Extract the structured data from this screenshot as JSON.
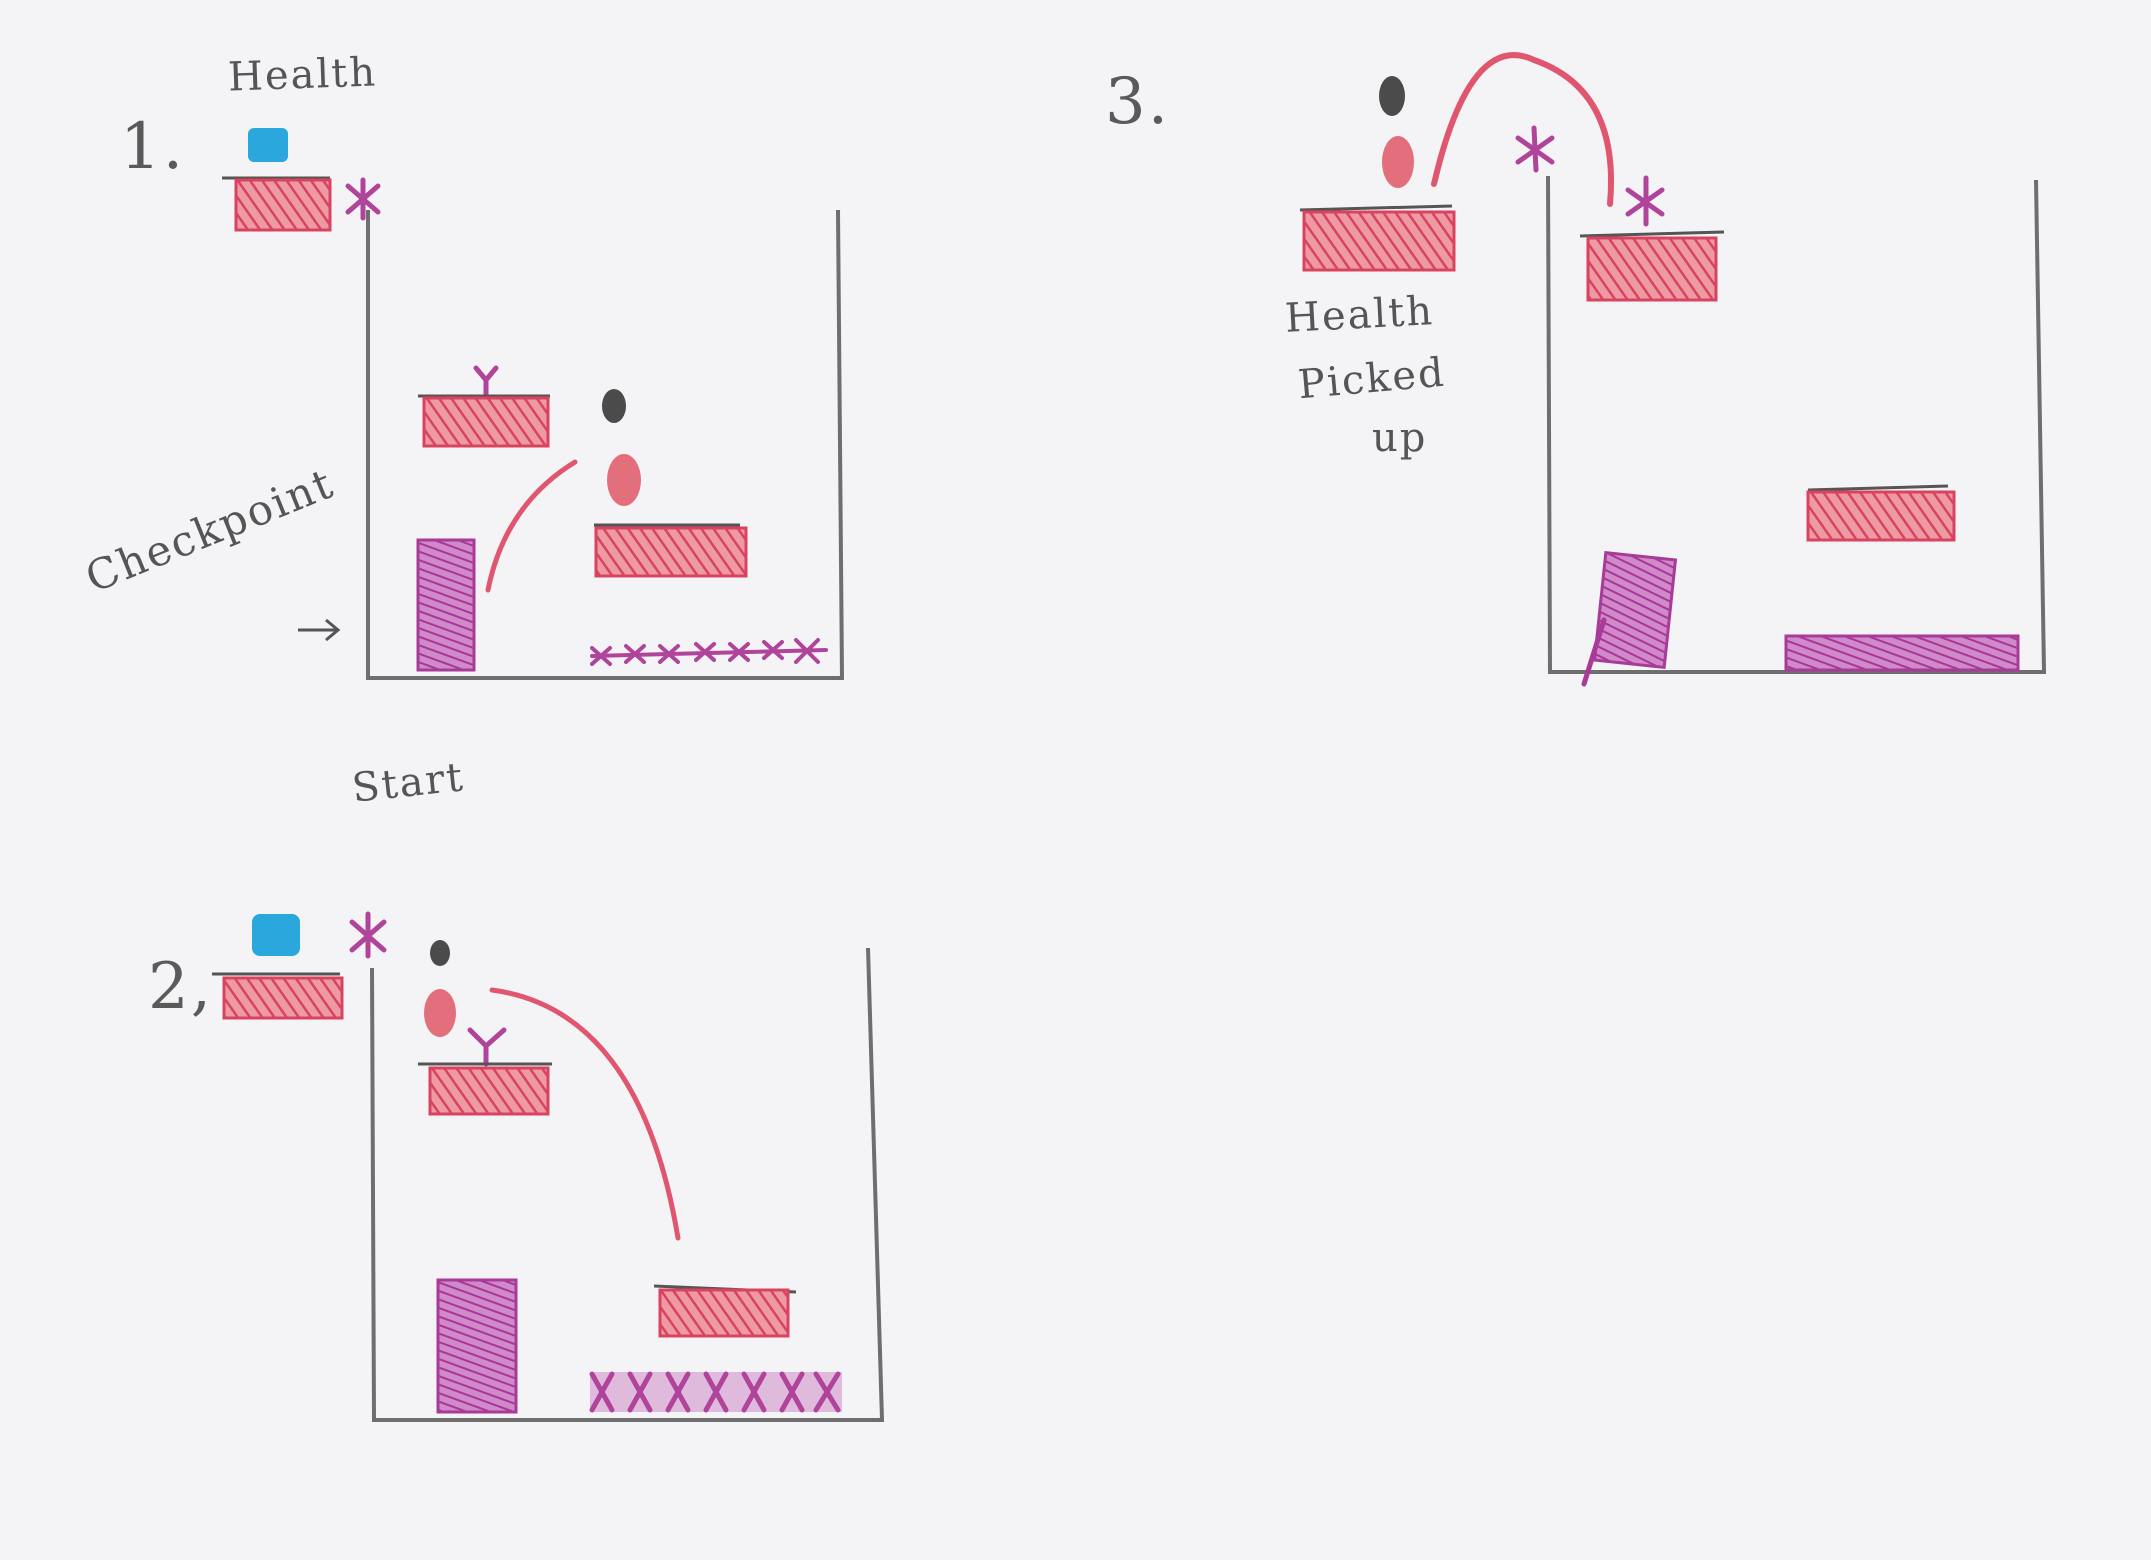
{
  "panels": [
    {
      "number": "1."
    },
    {
      "number": "2,"
    },
    {
      "number": "3."
    }
  ],
  "labels": {
    "health": "Health",
    "checkpoint": "Checkpoint",
    "start": "Start",
    "health_picked": "Health",
    "picked": "Picked",
    "up": "up"
  },
  "colors": {
    "paper": "#f4f4f7",
    "pencil": "#6e6e6e",
    "platform": "#e0566e",
    "spikes": "#b0449a",
    "health_pickup": "#2aa7dd",
    "player_head": "#4b4b4b",
    "player_body": "#e36f7c",
    "checkpoint": "#a83a98"
  }
}
